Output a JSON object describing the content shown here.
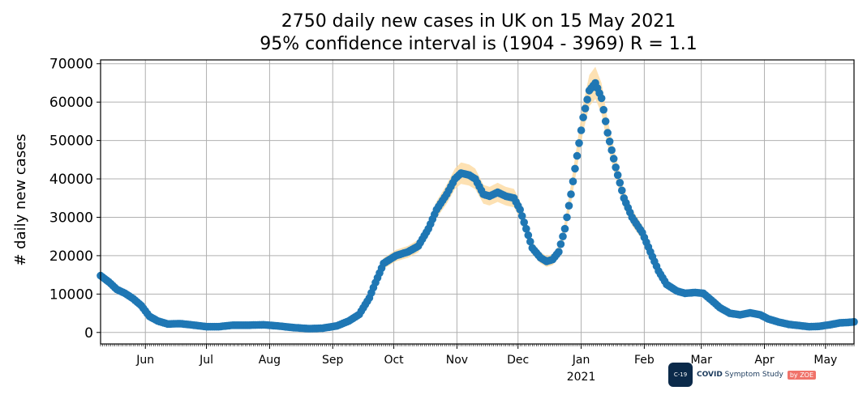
{
  "chart_data": {
    "type": "scatter",
    "title": [
      "2750 daily new cases in UK on 15 May 2021",
      "95% confidence interval is (1904 - 3969) R = 1.1"
    ],
    "ylabel": "# daily new cases",
    "xlabel": "",
    "x_range": [
      "2020-05-10",
      "2021-05-15"
    ],
    "ylim": [
      -3000,
      71000
    ],
    "y_ticks": [
      0,
      10000,
      20000,
      30000,
      40000,
      50000,
      60000,
      70000
    ],
    "y_tick_labels": [
      "0",
      "10000",
      "20000",
      "30000",
      "40000",
      "50000",
      "60000",
      "70000"
    ],
    "x_ticks": [
      {
        "date": "2020-06-01",
        "label": "Jun"
      },
      {
        "date": "2020-07-01",
        "label": "Jul"
      },
      {
        "date": "2020-08-01",
        "label": "Aug"
      },
      {
        "date": "2020-09-01",
        "label": "Sep"
      },
      {
        "date": "2020-10-01",
        "label": "Oct"
      },
      {
        "date": "2020-11-01",
        "label": "Nov"
      },
      {
        "date": "2020-12-01",
        "label": "Dec"
      },
      {
        "date": "2021-01-01",
        "label": "Jan"
      },
      {
        "date": "2021-02-01",
        "label": "Feb"
      },
      {
        "date": "2021-03-01",
        "label": "Mar"
      },
      {
        "date": "2021-04-01",
        "label": "Apr"
      },
      {
        "date": "2021-05-01",
        "label": "May"
      }
    ],
    "year_label": {
      "date": "2021-01-01",
      "label": "2021"
    },
    "grid": true,
    "marker_color": "#1f77b4",
    "ci_color": "#fdd9a0",
    "series": [
      {
        "values": [
          [
            "2020-05-10",
            14800
          ],
          [
            "2020-05-14",
            13200
          ],
          [
            "2020-05-18",
            11200
          ],
          [
            "2020-05-22",
            10200
          ],
          [
            "2020-05-26",
            8800
          ],
          [
            "2020-05-30",
            7000
          ],
          [
            "2020-06-03",
            4200
          ],
          [
            "2020-06-07",
            3000
          ],
          [
            "2020-06-12",
            2200
          ],
          [
            "2020-06-18",
            2300
          ],
          [
            "2020-06-25",
            1900
          ],
          [
            "2020-07-01",
            1500
          ],
          [
            "2020-07-07",
            1500
          ],
          [
            "2020-07-14",
            1900
          ],
          [
            "2020-07-22",
            1900
          ],
          [
            "2020-07-29",
            2000
          ],
          [
            "2020-08-05",
            1700
          ],
          [
            "2020-08-12",
            1300
          ],
          [
            "2020-08-20",
            1000
          ],
          [
            "2020-08-27",
            1100
          ],
          [
            "2020-09-03",
            1700
          ],
          [
            "2020-09-09",
            3000
          ],
          [
            "2020-09-14",
            4700
          ],
          [
            "2020-09-19",
            9000
          ],
          [
            "2020-09-22",
            13000
          ],
          [
            "2020-09-26",
            18000
          ],
          [
            "2020-10-02",
            20000
          ],
          [
            "2020-10-08",
            21000
          ],
          [
            "2020-10-13",
            22500
          ],
          [
            "2020-10-18",
            27000
          ],
          [
            "2020-10-22",
            32000
          ],
          [
            "2020-10-27",
            36000
          ],
          [
            "2020-10-31",
            40000
          ],
          [
            "2020-11-03",
            41500
          ],
          [
            "2020-11-07",
            41000
          ],
          [
            "2020-11-10",
            40000
          ],
          [
            "2020-11-14",
            36000
          ],
          [
            "2020-11-17",
            35500
          ],
          [
            "2020-11-21",
            36500
          ],
          [
            "2020-11-25",
            35500
          ],
          [
            "2020-11-29",
            35000
          ],
          [
            "2020-12-02",
            32000
          ],
          [
            "2020-12-05",
            27000
          ],
          [
            "2020-12-08",
            22000
          ],
          [
            "2020-12-12",
            19500
          ],
          [
            "2020-12-15",
            18500
          ],
          [
            "2020-12-18",
            19000
          ],
          [
            "2020-12-21",
            21000
          ],
          [
            "2020-12-24",
            27000
          ],
          [
            "2020-12-27",
            36000
          ],
          [
            "2020-12-30",
            46000
          ],
          [
            "2021-01-02",
            56000
          ],
          [
            "2021-01-05",
            63000
          ],
          [
            "2021-01-08",
            65000
          ],
          [
            "2021-01-11",
            61000
          ],
          [
            "2021-01-14",
            52000
          ],
          [
            "2021-01-18",
            43000
          ],
          [
            "2021-01-22",
            35000
          ],
          [
            "2021-01-26",
            30000
          ],
          [
            "2021-01-31",
            26000
          ],
          [
            "2021-02-04",
            21000
          ],
          [
            "2021-02-08",
            16000
          ],
          [
            "2021-02-12",
            12500
          ],
          [
            "2021-02-17",
            10800
          ],
          [
            "2021-02-21",
            10200
          ],
          [
            "2021-02-26",
            10400
          ],
          [
            "2021-03-02",
            10200
          ],
          [
            "2021-03-06",
            8400
          ],
          [
            "2021-03-10",
            6500
          ],
          [
            "2021-03-15",
            5000
          ],
          [
            "2021-03-20",
            4600
          ],
          [
            "2021-03-25",
            5100
          ],
          [
            "2021-03-30",
            4600
          ],
          [
            "2021-04-03",
            3500
          ],
          [
            "2021-04-08",
            2700
          ],
          [
            "2021-04-13",
            2100
          ],
          [
            "2021-04-18",
            1800
          ],
          [
            "2021-04-23",
            1500
          ],
          [
            "2021-04-28",
            1600
          ],
          [
            "2021-05-03",
            2000
          ],
          [
            "2021-05-08",
            2500
          ],
          [
            "2021-05-12",
            2600
          ],
          [
            "2021-05-15",
            2750
          ]
        ]
      }
    ]
  },
  "logo": {
    "icon_text": "C-19",
    "text_bold": "COVID",
    "text_rest": " Symptom Study",
    "zoe": "by ZOE"
  }
}
